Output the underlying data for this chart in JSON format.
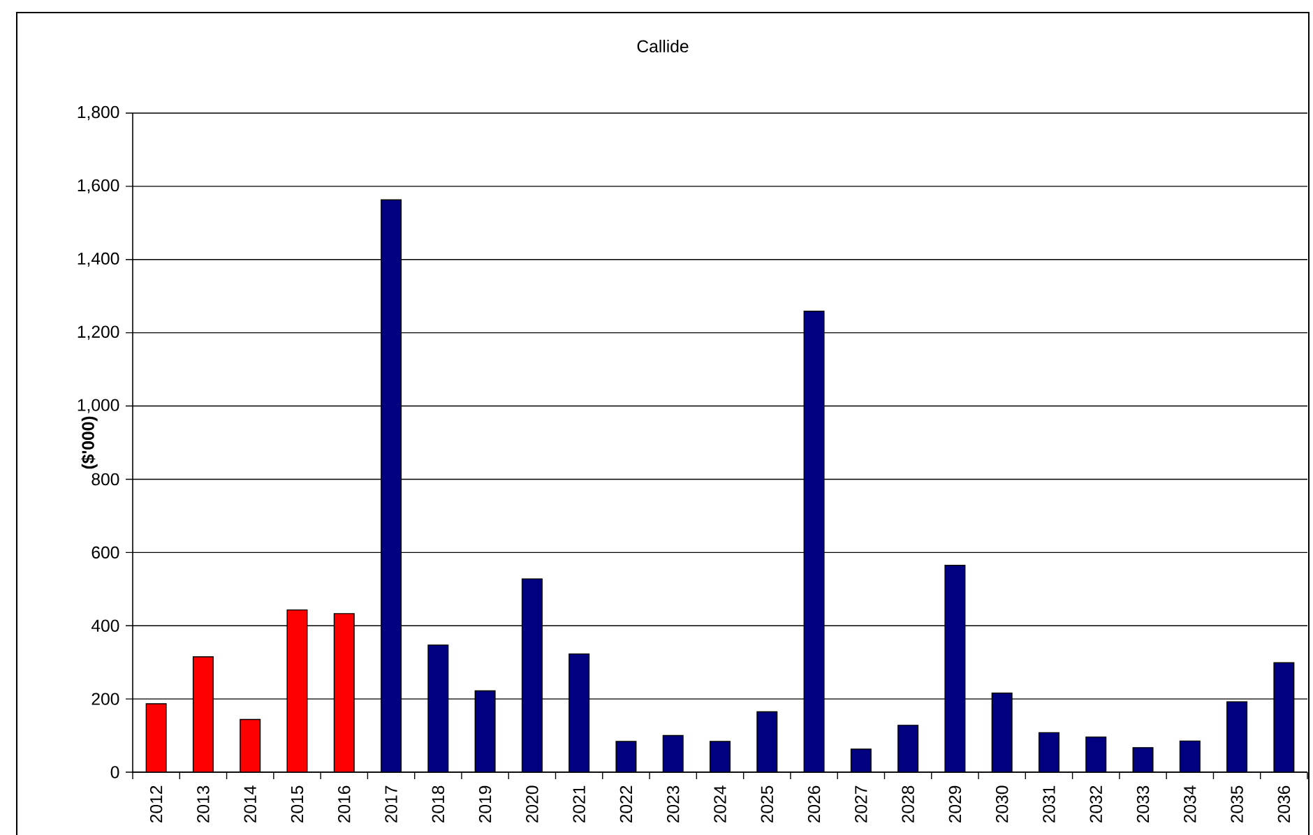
{
  "chart_data": {
    "type": "bar",
    "title": "Callide",
    "ylabel": "($'000)",
    "categories": [
      "2012",
      "2013",
      "2014",
      "2015",
      "2016",
      "2017",
      "2018",
      "2019",
      "2020",
      "2021",
      "2022",
      "2023",
      "2024",
      "2025",
      "2026",
      "2027",
      "2028",
      "2029",
      "2030",
      "2031",
      "2032",
      "2033",
      "2034",
      "2035",
      "2036"
    ],
    "values": [
      187,
      315,
      144,
      443,
      433,
      1563,
      347,
      222,
      528,
      323,
      84,
      100,
      84,
      165,
      1259,
      63,
      128,
      565,
      216,
      108,
      96,
      67,
      85,
      192,
      299
    ],
    "colors": [
      "#ff0000",
      "#ff0000",
      "#ff0000",
      "#ff0000",
      "#ff0000",
      "#000080",
      "#000080",
      "#000080",
      "#000080",
      "#000080",
      "#000080",
      "#000080",
      "#000080",
      "#000080",
      "#000080",
      "#000080",
      "#000080",
      "#000080",
      "#000080",
      "#000080",
      "#000080",
      "#000080",
      "#000080",
      "#000080",
      "#000080"
    ],
    "ylim": [
      0,
      1800
    ],
    "yticks": [
      0,
      200,
      400,
      600,
      800,
      {
        "value": 1000,
        "label": "1,000"
      },
      {
        "value": 1200,
        "label": "1,200"
      },
      {
        "value": 1400,
        "label": "1,400"
      },
      {
        "value": 1600,
        "label": "1,600"
      },
      {
        "value": 1800,
        "label": "1,800"
      }
    ],
    "grid": "y"
  }
}
